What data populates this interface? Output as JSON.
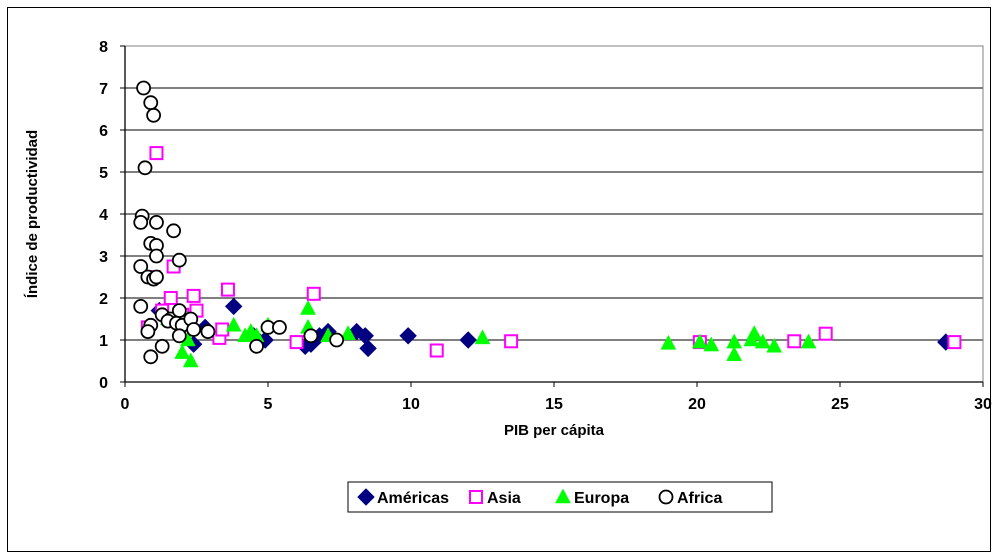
{
  "chart_data": {
    "type": "scatter",
    "xlabel": "PIB per cápita",
    "ylabel": "Índice de productividad",
    "xlim": [
      0,
      30
    ],
    "ylim": [
      0,
      8
    ],
    "xticks": [
      0,
      5,
      10,
      15,
      20,
      25,
      30
    ],
    "yticks": [
      0,
      1,
      2,
      3,
      4,
      5,
      6,
      7,
      8
    ],
    "grid": "horizontal",
    "legend_position": "bottom",
    "series": [
      {
        "name": "Américas",
        "marker": "diamond",
        "color": "#000080",
        "points": [
          [
            1.2,
            1.7
          ],
          [
            2.4,
            0.9
          ],
          [
            2.8,
            1.3
          ],
          [
            3.8,
            1.8
          ],
          [
            4.5,
            1.1
          ],
          [
            4.9,
            1.0
          ],
          [
            6.3,
            0.85
          ],
          [
            6.5,
            0.9
          ],
          [
            6.8,
            1.1
          ],
          [
            7.1,
            1.2
          ],
          [
            8.1,
            1.2
          ],
          [
            8.4,
            1.1
          ],
          [
            8.5,
            0.8
          ],
          [
            9.9,
            1.1
          ],
          [
            12.0,
            1.0
          ],
          [
            28.7,
            0.95
          ]
        ]
      },
      {
        "name": "Asia",
        "marker": "square",
        "color": "#FF00FF",
        "points": [
          [
            0.8,
            1.3
          ],
          [
            1.0,
            2.5
          ],
          [
            1.1,
            5.45
          ],
          [
            1.3,
            1.7
          ],
          [
            1.6,
            2.0
          ],
          [
            1.7,
            2.75
          ],
          [
            2.0,
            1.6
          ],
          [
            2.4,
            2.05
          ],
          [
            2.5,
            1.7
          ],
          [
            3.3,
            1.05
          ],
          [
            3.4,
            1.25
          ],
          [
            3.6,
            2.2
          ],
          [
            6.0,
            0.95
          ],
          [
            6.6,
            2.1
          ],
          [
            10.9,
            0.75
          ],
          [
            13.5,
            0.97
          ],
          [
            20.1,
            0.95
          ],
          [
            23.4,
            0.97
          ],
          [
            24.5,
            1.15
          ],
          [
            29.0,
            0.95
          ]
        ]
      },
      {
        "name": "Europa",
        "marker": "triangle",
        "color": "#00FF00",
        "points": [
          [
            1.5,
            1.5
          ],
          [
            2.0,
            0.7
          ],
          [
            2.2,
            1.0
          ],
          [
            2.3,
            0.5
          ],
          [
            3.8,
            1.35
          ],
          [
            4.2,
            1.1
          ],
          [
            4.4,
            1.2
          ],
          [
            4.6,
            1.1
          ],
          [
            5.0,
            1.35
          ],
          [
            6.4,
            1.75
          ],
          [
            6.4,
            1.3
          ],
          [
            7.1,
            1.1
          ],
          [
            7.8,
            1.15
          ],
          [
            12.5,
            1.05
          ],
          [
            19.0,
            0.92
          ],
          [
            20.1,
            0.95
          ],
          [
            20.5,
            0.88
          ],
          [
            21.3,
            0.95
          ],
          [
            21.3,
            0.65
          ],
          [
            21.9,
            1.0
          ],
          [
            22.0,
            1.15
          ],
          [
            22.3,
            0.95
          ],
          [
            22.7,
            0.85
          ],
          [
            23.9,
            0.95
          ]
        ]
      },
      {
        "name": "Africa",
        "marker": "circle",
        "color": "#000000",
        "points": [
          [
            0.65,
            7.0
          ],
          [
            0.9,
            6.65
          ],
          [
            1.0,
            6.35
          ],
          [
            0.7,
            5.1
          ],
          [
            0.6,
            3.95
          ],
          [
            0.55,
            3.8
          ],
          [
            1.1,
            3.8
          ],
          [
            1.7,
            3.6
          ],
          [
            0.9,
            3.3
          ],
          [
            1.1,
            3.25
          ],
          [
            1.1,
            3.0
          ],
          [
            1.9,
            2.9
          ],
          [
            0.55,
            2.75
          ],
          [
            0.8,
            2.5
          ],
          [
            1.0,
            2.45
          ],
          [
            1.1,
            2.5
          ],
          [
            0.55,
            1.8
          ],
          [
            1.3,
            1.6
          ],
          [
            1.6,
            1.5
          ],
          [
            1.9,
            1.7
          ],
          [
            1.5,
            1.45
          ],
          [
            1.8,
            1.4
          ],
          [
            2.0,
            1.35
          ],
          [
            2.3,
            1.5
          ],
          [
            0.9,
            1.35
          ],
          [
            2.4,
            1.25
          ],
          [
            2.9,
            1.2
          ],
          [
            0.8,
            1.2
          ],
          [
            1.9,
            1.1
          ],
          [
            5.0,
            1.3
          ],
          [
            5.4,
            1.3
          ],
          [
            6.5,
            1.1
          ],
          [
            7.4,
            1.0
          ],
          [
            1.3,
            0.85
          ],
          [
            4.6,
            0.85
          ],
          [
            0.9,
            0.6
          ]
        ]
      }
    ]
  }
}
